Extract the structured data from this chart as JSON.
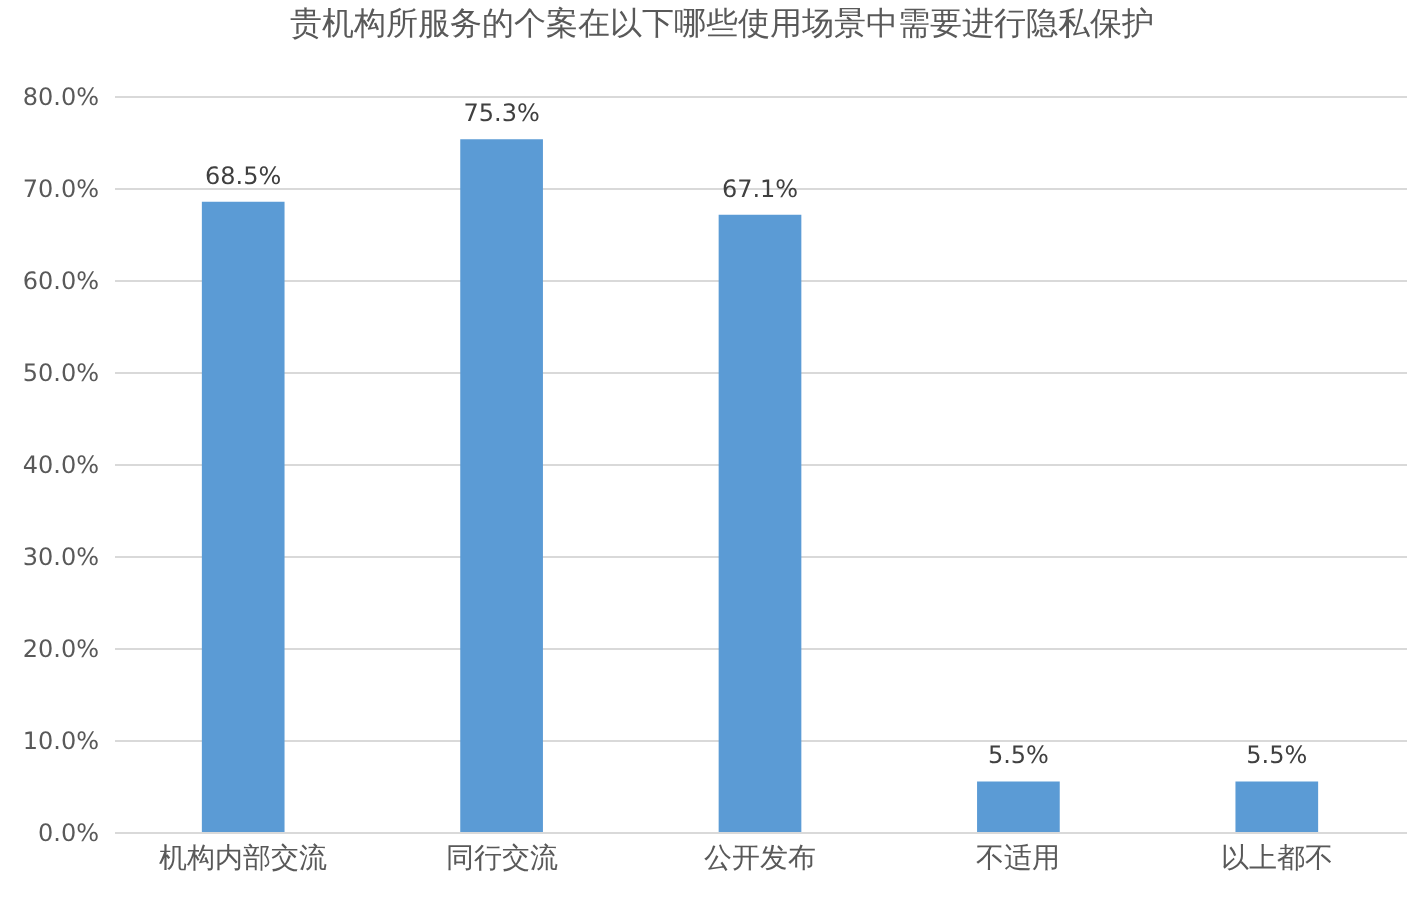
{
  "chart_data": {
    "type": "bar",
    "title": "贵机构所服务的个案在以下哪些使用场景中需要进行隐私保护",
    "categories": [
      "机构内部交流",
      "同行交流",
      "公开发布",
      "不适用",
      "以上都不"
    ],
    "values": [
      68.5,
      75.3,
      67.1,
      5.5,
      5.5
    ],
    "value_labels": [
      "68.5%",
      "75.3%",
      "67.1%",
      "5.5%",
      "5.5%"
    ],
    "color": "#5b9bd5",
    "ylim": [
      0,
      80
    ],
    "yticks": [
      {
        "value": 0,
        "label": "0.0%"
      },
      {
        "value": 10,
        "label": "10.0%"
      },
      {
        "value": 20,
        "label": "20.0%"
      },
      {
        "value": 30,
        "label": "30.0%"
      },
      {
        "value": 40,
        "label": "40.0%"
      },
      {
        "value": 50,
        "label": "50.0%"
      },
      {
        "value": 60,
        "label": "60.0%"
      },
      {
        "value": 70,
        "label": "70.0%"
      },
      {
        "value": 80,
        "label": "80.0%"
      }
    ],
    "grid": "y"
  }
}
